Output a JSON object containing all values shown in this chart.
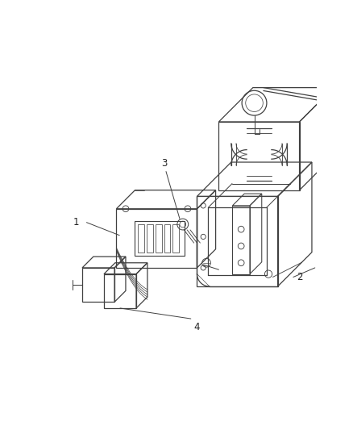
{
  "background_color": "#ffffff",
  "line_color": "#404040",
  "label_color": "#222222",
  "fig_width": 4.38,
  "fig_height": 5.33,
  "dpi": 100,
  "label_fontsize": 8.5,
  "line_width": 0.9
}
